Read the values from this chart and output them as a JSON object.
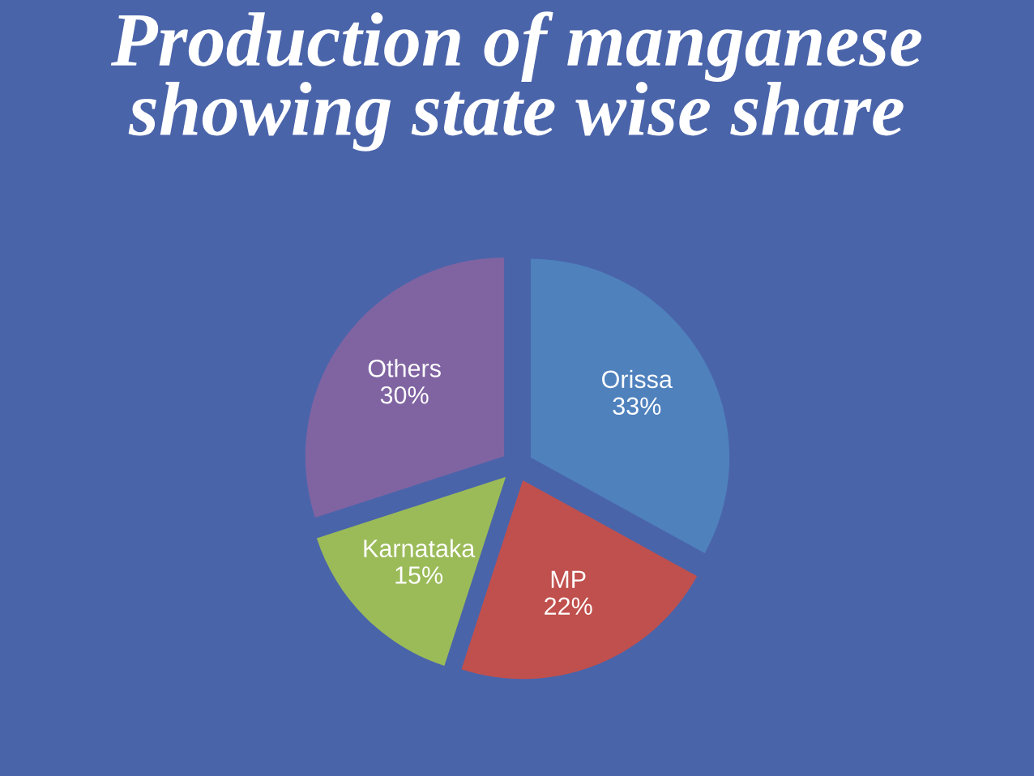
{
  "chart_data": {
    "type": "pie",
    "title": "Production of manganese showing state wise share",
    "categories": [
      "Orissa",
      "MP",
      "Karnataka",
      "Others"
    ],
    "values": [
      33,
      22,
      15,
      30
    ],
    "value_labels": [
      "33%",
      "22%",
      "15%",
      "30%"
    ],
    "colors": [
      "#4f81bd",
      "#c0504d",
      "#9bbb59",
      "#8064a2"
    ]
  }
}
